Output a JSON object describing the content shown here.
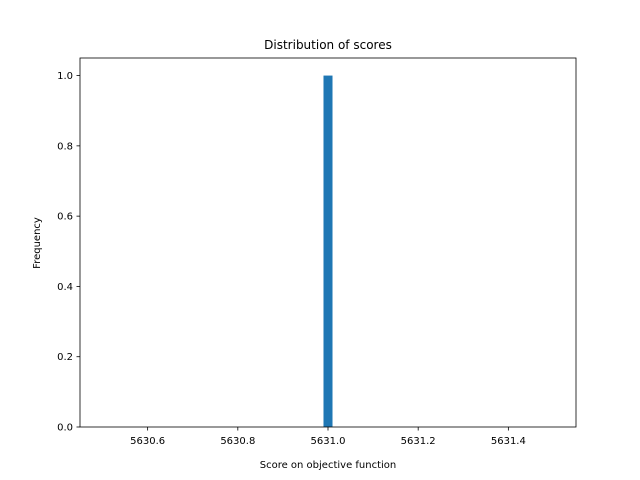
{
  "chart_data": {
    "type": "bar",
    "title": "Distribution of scores",
    "xlabel": "Score on objective function",
    "ylabel": "Frequency",
    "xlim": [
      5630.45,
      5631.55
    ],
    "ylim": [
      0,
      1.05
    ],
    "xticks": [
      5630.6,
      5630.8,
      5631.0,
      5631.2,
      5631.4
    ],
    "xtick_labels": [
      "5630.6",
      "5630.8",
      "5631.0",
      "5631.2",
      "5631.4"
    ],
    "yticks": [
      0,
      0.2,
      0.4,
      0.6,
      0.8,
      1.0
    ],
    "ytick_labels": [
      "0.0",
      "0.2",
      "0.4",
      "0.6",
      "0.8",
      "1.0"
    ],
    "bins": [
      {
        "x_start": 5630.99,
        "x_end": 5631.01,
        "count": 1
      }
    ],
    "bar_color": "#1f77b4",
    "grid": false
  }
}
